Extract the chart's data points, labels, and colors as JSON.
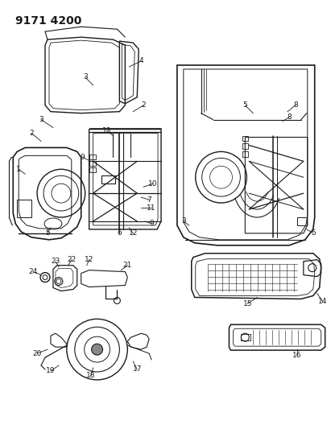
{
  "title": "9171 4200",
  "bg": "#ffffff",
  "lc": "#1a1a1a",
  "fig_w": 4.11,
  "fig_h": 5.33,
  "label_fs": 6.5,
  "title_fs": 10
}
